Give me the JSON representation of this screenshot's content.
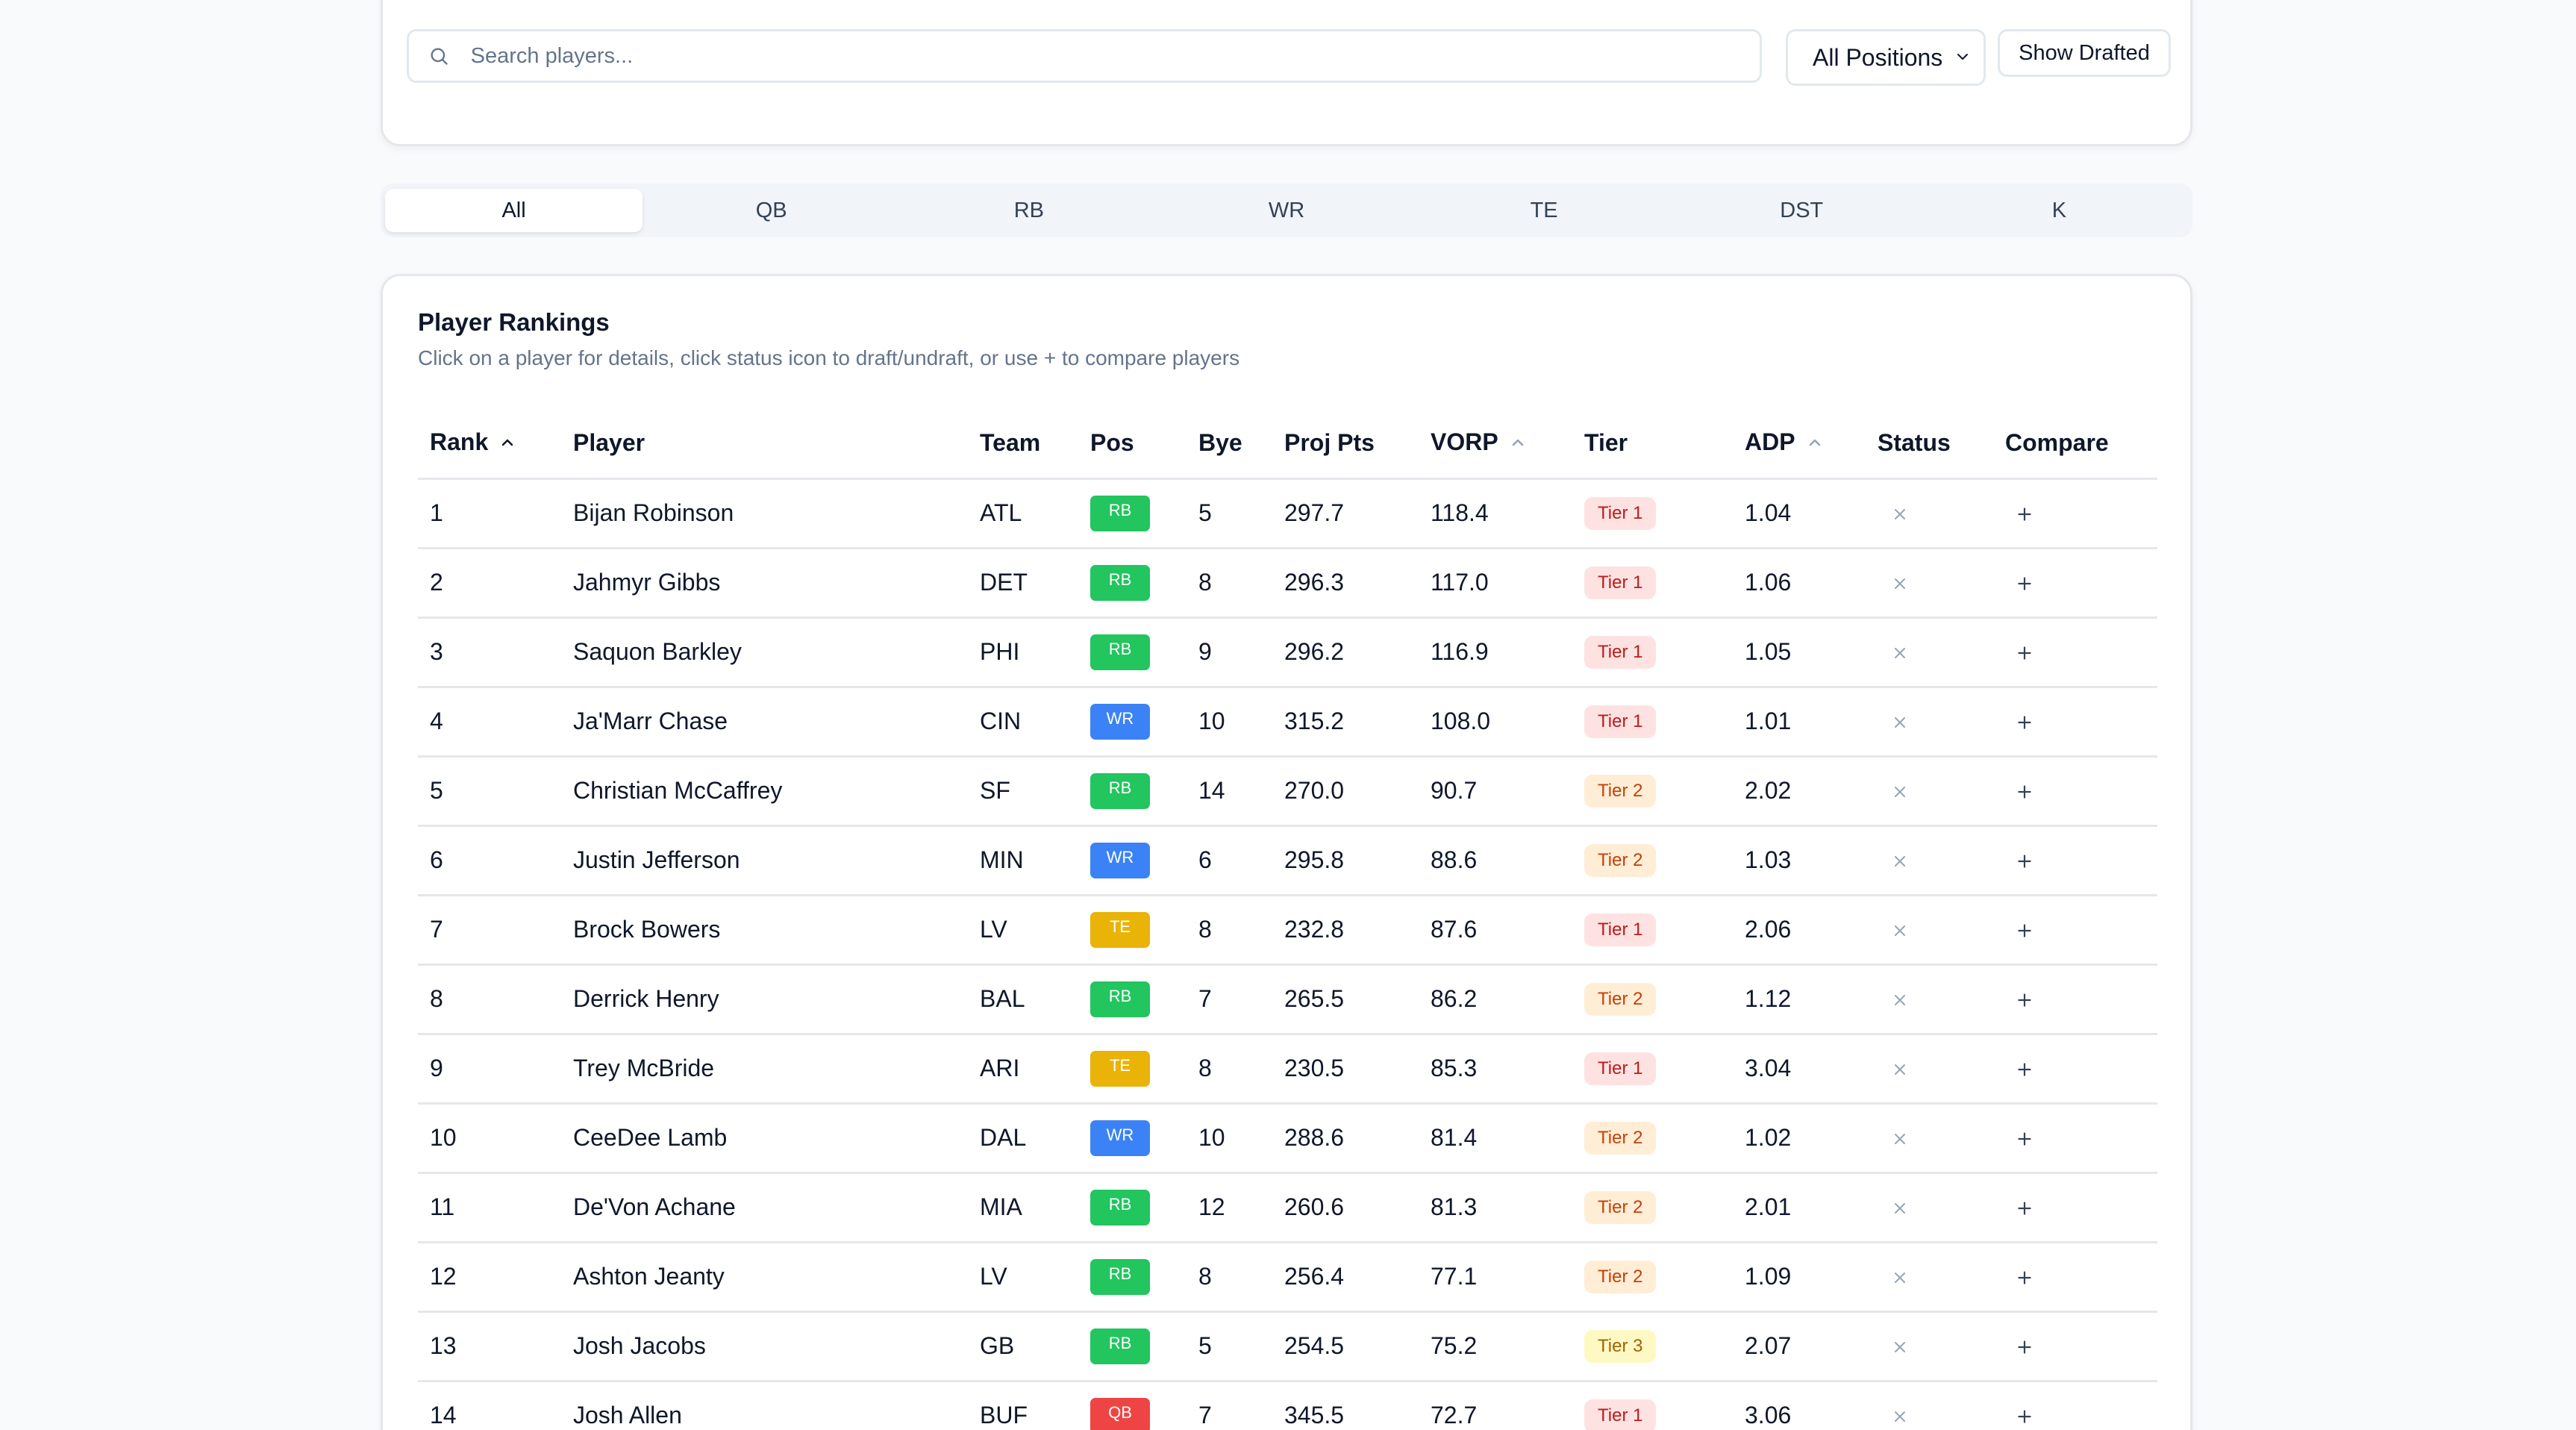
{
  "filters": {
    "search_placeholder": "Search players...",
    "position_select": "All Positions",
    "show_drafted": "Show Drafted"
  },
  "tabs": [
    "All",
    "QB",
    "RB",
    "WR",
    "TE",
    "DST",
    "K"
  ],
  "active_tab": "All",
  "rankings": {
    "title": "Player Rankings",
    "subtitle": "Click on a player for details, click status icon to draft/undraft, or use + to compare players",
    "columns": [
      "Rank",
      "Player",
      "Team",
      "Pos",
      "Bye",
      "Proj Pts",
      "VORP",
      "Tier",
      "ADP",
      "Status",
      "Compare"
    ],
    "sortable_columns": [
      "Rank",
      "VORP",
      "ADP"
    ],
    "rows": [
      {
        "rank": "1",
        "player": "Bijan Robinson",
        "team": "ATL",
        "pos": "RB",
        "bye": "5",
        "proj": "297.7",
        "vorp": "118.4",
        "tier": "Tier 1",
        "adp": "1.04"
      },
      {
        "rank": "2",
        "player": "Jahmyr Gibbs",
        "team": "DET",
        "pos": "RB",
        "bye": "8",
        "proj": "296.3",
        "vorp": "117.0",
        "tier": "Tier 1",
        "adp": "1.06"
      },
      {
        "rank": "3",
        "player": "Saquon Barkley",
        "team": "PHI",
        "pos": "RB",
        "bye": "9",
        "proj": "296.2",
        "vorp": "116.9",
        "tier": "Tier 1",
        "adp": "1.05"
      },
      {
        "rank": "4",
        "player": "Ja'Marr Chase",
        "team": "CIN",
        "pos": "WR",
        "bye": "10",
        "proj": "315.2",
        "vorp": "108.0",
        "tier": "Tier 1",
        "adp": "1.01"
      },
      {
        "rank": "5",
        "player": "Christian McCaffrey",
        "team": "SF",
        "pos": "RB",
        "bye": "14",
        "proj": "270.0",
        "vorp": "90.7",
        "tier": "Tier 2",
        "adp": "2.02"
      },
      {
        "rank": "6",
        "player": "Justin Jefferson",
        "team": "MIN",
        "pos": "WR",
        "bye": "6",
        "proj": "295.8",
        "vorp": "88.6",
        "tier": "Tier 2",
        "adp": "1.03"
      },
      {
        "rank": "7",
        "player": "Brock Bowers",
        "team": "LV",
        "pos": "TE",
        "bye": "8",
        "proj": "232.8",
        "vorp": "87.6",
        "tier": "Tier 1",
        "adp": "2.06"
      },
      {
        "rank": "8",
        "player": "Derrick Henry",
        "team": "BAL",
        "pos": "RB",
        "bye": "7",
        "proj": "265.5",
        "vorp": "86.2",
        "tier": "Tier 2",
        "adp": "1.12"
      },
      {
        "rank": "9",
        "player": "Trey McBride",
        "team": "ARI",
        "pos": "TE",
        "bye": "8",
        "proj": "230.5",
        "vorp": "85.3",
        "tier": "Tier 1",
        "adp": "3.04"
      },
      {
        "rank": "10",
        "player": "CeeDee Lamb",
        "team": "DAL",
        "pos": "WR",
        "bye": "10",
        "proj": "288.6",
        "vorp": "81.4",
        "tier": "Tier 2",
        "adp": "1.02"
      },
      {
        "rank": "11",
        "player": "De'Von Achane",
        "team": "MIA",
        "pos": "RB",
        "bye": "12",
        "proj": "260.6",
        "vorp": "81.3",
        "tier": "Tier 2",
        "adp": "2.01"
      },
      {
        "rank": "12",
        "player": "Ashton Jeanty",
        "team": "LV",
        "pos": "RB",
        "bye": "8",
        "proj": "256.4",
        "vorp": "77.1",
        "tier": "Tier 2",
        "adp": "1.09"
      },
      {
        "rank": "13",
        "player": "Josh Jacobs",
        "team": "GB",
        "pos": "RB",
        "bye": "5",
        "proj": "254.5",
        "vorp": "75.2",
        "tier": "Tier 3",
        "adp": "2.07"
      },
      {
        "rank": "14",
        "player": "Josh Allen",
        "team": "BUF",
        "pos": "QB",
        "bye": "7",
        "proj": "345.5",
        "vorp": "72.7",
        "tier": "Tier 1",
        "adp": "3.06"
      }
    ]
  },
  "colors": {
    "pos": {
      "RB": "#22c55e",
      "WR": "#3b82f6",
      "TE": "#eab308",
      "QB": "#ef4444"
    },
    "tier": {
      "Tier 1": {
        "bg": "#fee2e2",
        "fg": "#b91c1c"
      },
      "Tier 2": {
        "bg": "#ffedd5",
        "fg": "#c2410c"
      },
      "Tier 3": {
        "bg": "#fef9c3",
        "fg": "#a16207"
      }
    }
  },
  "icons": {
    "search": "search-icon",
    "select": "chevron-down-icon",
    "sort": "chevron-up-icon",
    "status": "close-icon",
    "compare": "plus-icon"
  }
}
